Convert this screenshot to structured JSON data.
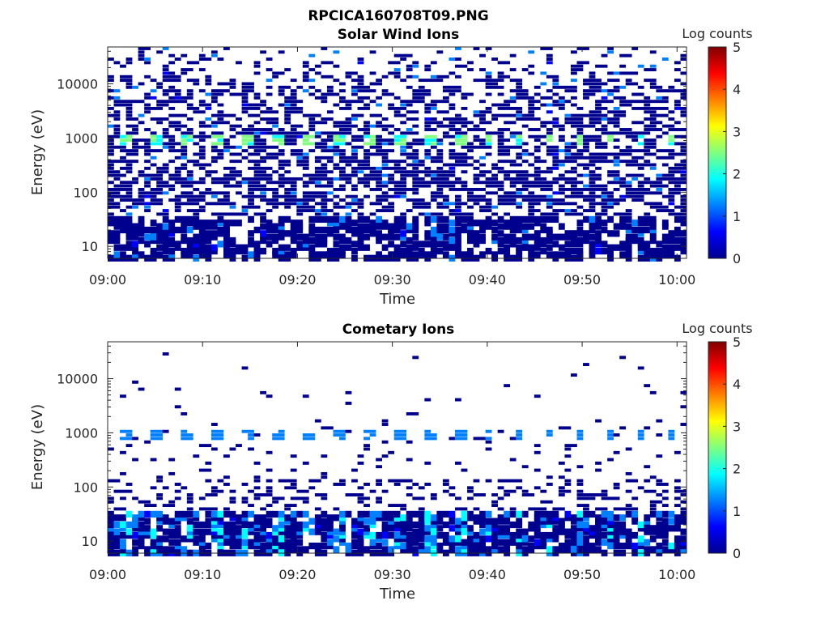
{
  "figure": {
    "title": "RPCICA160708T09.PNG"
  },
  "colormap": [
    "#00008f",
    "#0000ff",
    "#0080ff",
    "#00ffff",
    "#80ff80",
    "#ffff00",
    "#ff8000",
    "#ff0000",
    "#800000"
  ],
  "chart_data": [
    {
      "type": "heatmap",
      "title": "Solar Wind Ions",
      "xlabel": "Time",
      "ylabel": "Energy (eV)",
      "x_range": [
        "09:00",
        "10:01"
      ],
      "x_ticks": [
        "09:00",
        "09:10",
        "09:20",
        "09:30",
        "09:40",
        "09:50",
        "10:00"
      ],
      "y_scale": "log",
      "y_range": [
        6,
        48000
      ],
      "y_ticks": [
        "10",
        "100",
        "1000",
        "10000"
      ],
      "colorbar": {
        "label": "Log counts",
        "range": [
          0,
          5
        ],
        "ticks": [
          "0",
          "1",
          "2",
          "3",
          "4",
          "5"
        ]
      },
      "grid": false
    },
    {
      "type": "heatmap",
      "title": "Cometary Ions",
      "xlabel": "Time",
      "ylabel": "Energy (eV)",
      "x_range": [
        "09:00",
        "10:01"
      ],
      "x_ticks": [
        "09:00",
        "09:10",
        "09:20",
        "09:30",
        "09:40",
        "09:50",
        "10:00"
      ],
      "y_scale": "log",
      "y_range": [
        6,
        48000
      ],
      "y_ticks": [
        "10",
        "100",
        "1000",
        "10000"
      ],
      "colorbar": {
        "label": "Log counts",
        "range": [
          0,
          5
        ],
        "ticks": [
          "0",
          "1",
          "2",
          "3",
          "4",
          "5"
        ]
      },
      "grid": false
    }
  ]
}
